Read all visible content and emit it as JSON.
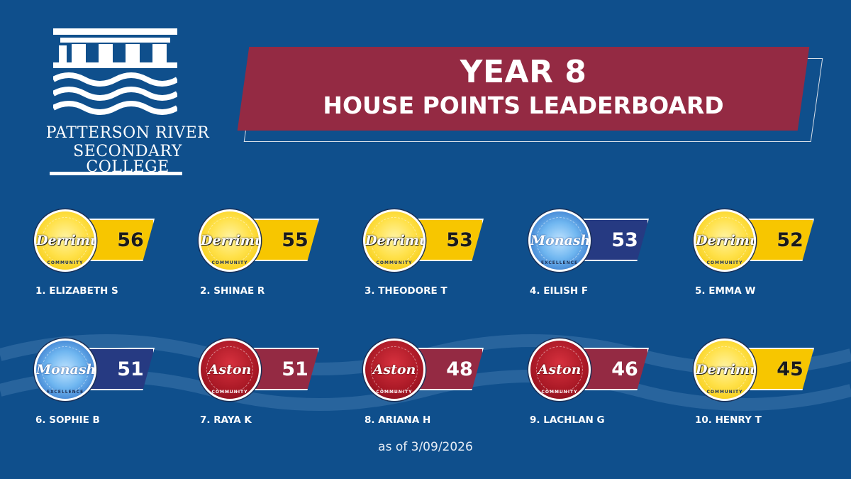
{
  "school": {
    "name_line1": "PATTERSON RIVER",
    "name_line2": "SECONDARY COLLEGE"
  },
  "title": {
    "line1": "YEAR 8",
    "line2": "HOUSE POINTS LEADERBOARD"
  },
  "colors": {
    "background": "#0f4f8c",
    "banner": "#942a43",
    "gold_house": "#f7c600",
    "blue_house": "#263a82",
    "red_house": "#942a43"
  },
  "houses": {
    "gold": {
      "name": "Derrimut",
      "motto": "COMMUNITY"
    },
    "blue": {
      "name": "Monash",
      "motto": "EXCELLENCE"
    },
    "red": {
      "name": "Aston",
      "motto": "COMMUNITY"
    }
  },
  "leaderboard": [
    {
      "rank_name": "1.  ELIZABETH S",
      "points": "56",
      "house": "gold"
    },
    {
      "rank_name": "2. SHINAE R",
      "points": "55",
      "house": "gold"
    },
    {
      "rank_name": "3. THEODORE T",
      "points": "53",
      "house": "gold"
    },
    {
      "rank_name": "4. EILISH F",
      "points": "53",
      "house": "blue"
    },
    {
      "rank_name": "5.  EMMA W",
      "points": "52",
      "house": "gold"
    },
    {
      "rank_name": "6. SOPHIE B",
      "points": "51",
      "house": "blue"
    },
    {
      "rank_name": "7. RAYA K",
      "points": "51",
      "house": "red"
    },
    {
      "rank_name": "8. ARIANA H",
      "points": "48",
      "house": "red"
    },
    {
      "rank_name": "9. LACHLAN G",
      "points": "46",
      "house": "red"
    },
    {
      "rank_name": "10. HENRY T",
      "points": "45",
      "house": "gold"
    }
  ],
  "footer": "as of 3/09/2026"
}
